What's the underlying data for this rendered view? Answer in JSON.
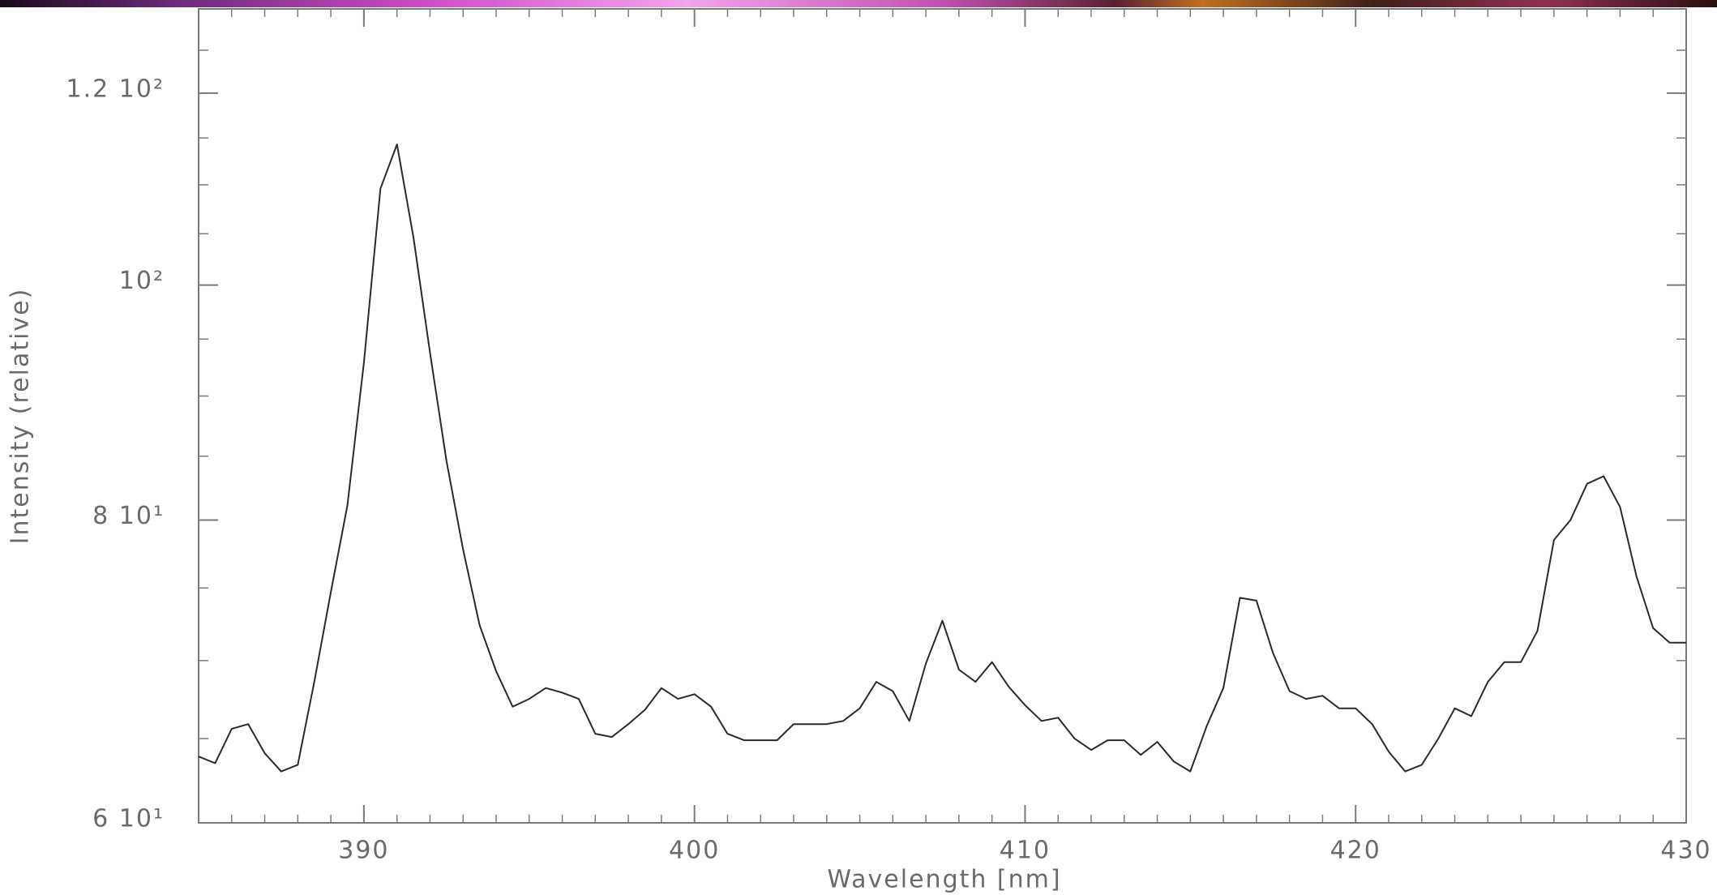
{
  "chart_data": {
    "type": "line",
    "x_label": "Wavelength [nm]",
    "y_label": "Intensity (relative)",
    "log_y": true,
    "xlim": [
      385,
      430
    ],
    "ylim": [
      60,
      130
    ],
    "xticks": [
      390,
      400,
      410,
      420,
      430
    ],
    "yticks": [
      {
        "value": 60,
        "label": "6 10¹"
      },
      {
        "value": 80,
        "label": "8 10¹"
      },
      {
        "value": 100,
        "label": "10²"
      },
      {
        "value": 120,
        "label": "1.2 10²"
      }
    ],
    "x_minor_step": 1,
    "y_minor_step": 5,
    "series": [
      {
        "color": "#2a2a2a",
        "x": [
          385,
          385.5,
          386,
          386.5,
          387,
          387.5,
          388,
          388.5,
          389,
          389.5,
          390,
          390.5,
          391,
          391.5,
          392,
          392.5,
          393,
          393.5,
          394,
          394.5,
          395,
          395.5,
          396,
          396.5,
          397,
          397.5,
          398,
          398.5,
          399,
          399.5,
          400,
          400.5,
          401,
          401.5,
          402,
          402.5,
          403,
          403.5,
          404,
          404.5,
          405,
          405.5,
          406,
          406.5,
          407,
          407.5,
          408,
          408.5,
          409,
          409.5,
          410,
          410.5,
          411,
          411.5,
          412,
          412.5,
          413,
          413.5,
          414,
          414.5,
          415,
          415.5,
          416,
          416.5,
          417,
          417.5,
          418,
          418.5,
          419,
          419.5,
          420,
          420.5,
          421,
          421.5,
          422,
          422.5,
          423,
          423.5,
          424,
          424.5,
          425,
          425.5,
          426,
          426.5,
          427,
          427.5,
          428,
          428.5,
          429,
          429.5,
          430
        ],
        "values": [
          63.9,
          63.5,
          65.6,
          65.9,
          64.1,
          63.0,
          63.4,
          68.6,
          74.7,
          81.1,
          92.9,
          109.6,
          114.3,
          104.6,
          93.8,
          84.6,
          77.8,
          72.4,
          69.3,
          67.0,
          67.5,
          68.2,
          67.9,
          67.5,
          65.3,
          65.1,
          65.9,
          66.8,
          68.2,
          67.5,
          67.8,
          67.0,
          65.3,
          64.9,
          64.9,
          64.9,
          65.9,
          65.9,
          65.9,
          66.1,
          66.9,
          68.6,
          68.0,
          66.1,
          69.8,
          72.7,
          69.4,
          68.6,
          69.9,
          68.3,
          67.1,
          66.1,
          66.3,
          65.0,
          64.3,
          64.9,
          64.9,
          64.0,
          64.8,
          63.6,
          63.0,
          65.8,
          68.2,
          74.3,
          74.1,
          70.5,
          68.0,
          67.5,
          67.7,
          66.9,
          66.9,
          65.9,
          64.2,
          63.0,
          63.4,
          65.0,
          66.9,
          66.4,
          68.6,
          69.9,
          69.9,
          72.0,
          78.5,
          80.0,
          82.8,
          83.4,
          81.0,
          75.8,
          72.2,
          71.2,
          71.2
        ]
      }
    ]
  }
}
